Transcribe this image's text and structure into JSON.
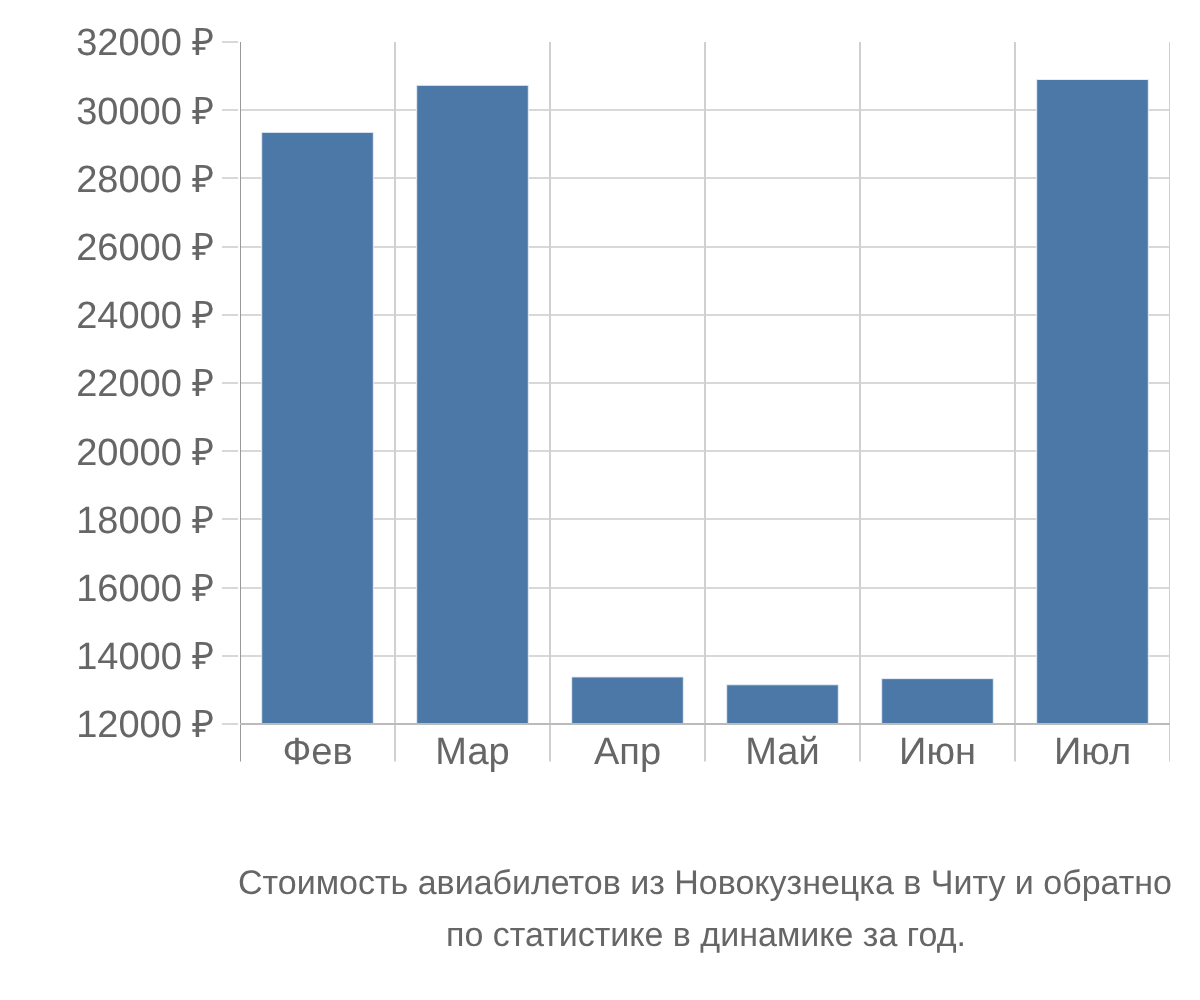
{
  "chart_data": {
    "type": "bar",
    "categories": [
      "Фев",
      "Мар",
      "Апр",
      "Май",
      "Июн",
      "Июл"
    ],
    "values": [
      29350,
      30730,
      13380,
      13150,
      13330,
      30900
    ],
    "color": "#4c78a8",
    "ylim": [
      12000,
      32000
    ],
    "yticks": [
      {
        "value": 12000,
        "label": "12000 ₽"
      },
      {
        "value": 14000,
        "label": "14000 ₽"
      },
      {
        "value": 16000,
        "label": "16000 ₽"
      },
      {
        "value": 18000,
        "label": "18000 ₽"
      },
      {
        "value": 20000,
        "label": "20000 ₽"
      },
      {
        "value": 22000,
        "label": "22000 ₽"
      },
      {
        "value": 24000,
        "label": "24000 ₽"
      },
      {
        "value": 26000,
        "label": "26000 ₽"
      },
      {
        "value": 28000,
        "label": "28000 ₽"
      },
      {
        "value": 30000,
        "label": "30000 ₽"
      },
      {
        "value": 32000,
        "label": "32000 ₽"
      }
    ],
    "grid": true,
    "legend": false,
    "annotations": [
      "Стоимость авиабилетов из Новокузнецка в Читу и обратно",
      "по статистике в динамике за год."
    ]
  }
}
